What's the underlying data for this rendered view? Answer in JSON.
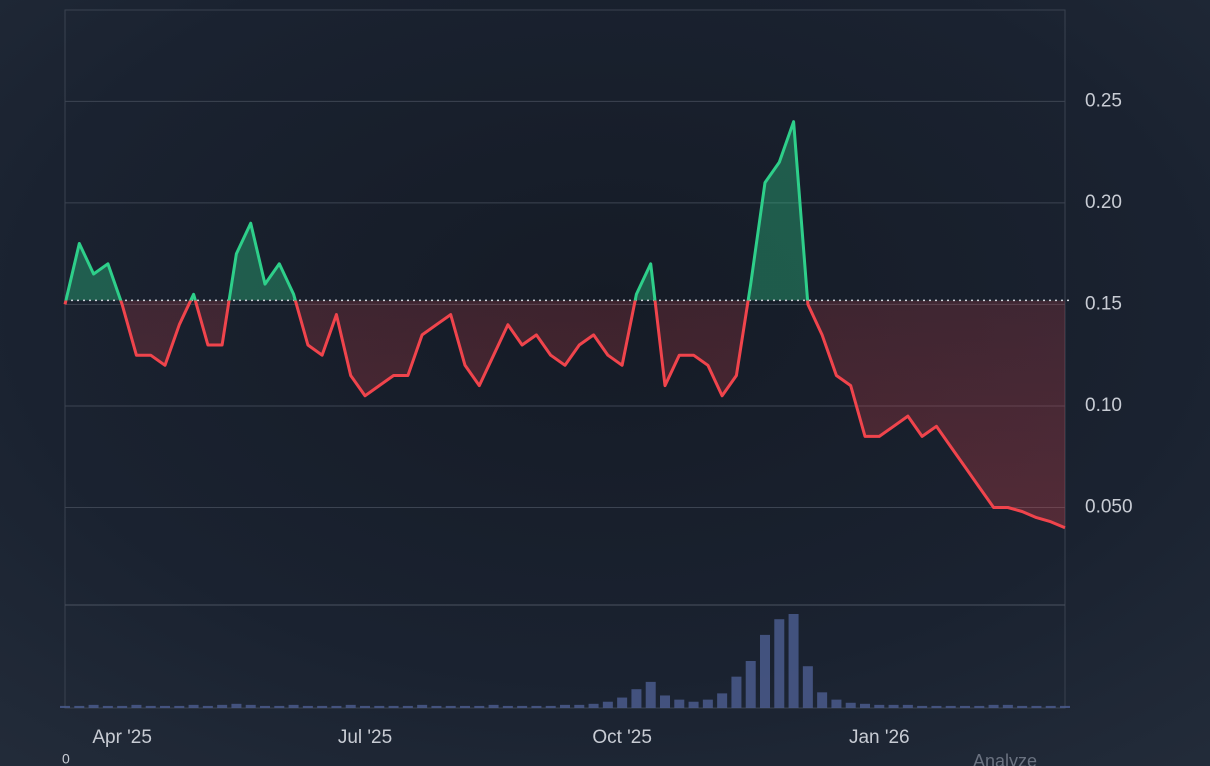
{
  "chart_data": {
    "type": "line",
    "categories": [
      null,
      null,
      null,
      null,
      "Apr '25",
      null,
      null,
      null,
      null,
      null,
      null,
      null,
      null,
      null,
      null,
      null,
      null,
      null,
      null,
      null,
      null,
      "Jul '25",
      null,
      null,
      null,
      null,
      null,
      null,
      null,
      null,
      null,
      null,
      null,
      null,
      null,
      null,
      null,
      null,
      null,
      "Oct '25",
      null,
      null,
      null,
      null,
      null,
      null,
      null,
      null,
      null,
      null,
      null,
      null,
      null,
      null,
      null,
      null,
      null,
      "Jan '26",
      null,
      null,
      null,
      null,
      null,
      null,
      null,
      null,
      null,
      null,
      null,
      null,
      null
    ],
    "values": [
      0.15,
      0.18,
      0.165,
      0.17,
      0.15,
      0.125,
      0.125,
      0.12,
      0.14,
      0.155,
      0.13,
      0.13,
      0.175,
      0.19,
      0.16,
      0.17,
      0.155,
      0.13,
      0.125,
      0.145,
      0.115,
      0.105,
      0.11,
      0.115,
      0.115,
      0.135,
      0.14,
      0.145,
      0.12,
      0.11,
      0.125,
      0.14,
      0.13,
      0.135,
      0.125,
      0.12,
      0.13,
      0.135,
      0.125,
      0.12,
      0.155,
      0.17,
      0.11,
      0.125,
      0.125,
      0.12,
      0.105,
      0.115,
      0.16,
      0.21,
      0.22,
      0.24,
      0.15,
      0.135,
      0.115,
      0.11,
      0.085,
      0.085,
      0.09,
      0.095,
      0.085,
      0.09,
      0.08,
      0.07,
      0.06,
      0.05,
      0.05,
      0.048,
      0.045,
      0.043,
      0.04
    ],
    "baseline": 0.152,
    "up_color": "#2ecf8a",
    "down_color": "#f0444c",
    "ylim": [
      0,
      0.295
    ],
    "yticks": [
      {
        "value": 0.05,
        "label": "0.050"
      },
      {
        "value": 0.1,
        "label": "0.10"
      },
      0.15,
      {
        "value": 0.2,
        "label": "0.20"
      },
      0.25
    ],
    "grid": true,
    "volume": {
      "color": "#4a5a8c",
      "values": [
        2,
        2,
        3,
        2,
        2,
        3,
        2,
        2,
        2,
        3,
        2,
        3,
        4,
        3,
        2,
        2,
        3,
        2,
        2,
        2,
        3,
        2,
        2,
        2,
        2,
        3,
        2,
        2,
        2,
        2,
        3,
        2,
        2,
        2,
        2,
        3,
        3,
        4,
        6,
        10,
        18,
        25,
        12,
        8,
        6,
        8,
        14,
        30,
        45,
        70,
        85,
        90,
        40,
        15,
        8,
        5,
        4,
        3,
        3,
        3,
        2,
        2,
        2,
        2,
        2,
        3,
        3,
        2,
        2,
        2,
        2
      ]
    },
    "volume_axis_label": "0",
    "button": "Analyze"
  }
}
